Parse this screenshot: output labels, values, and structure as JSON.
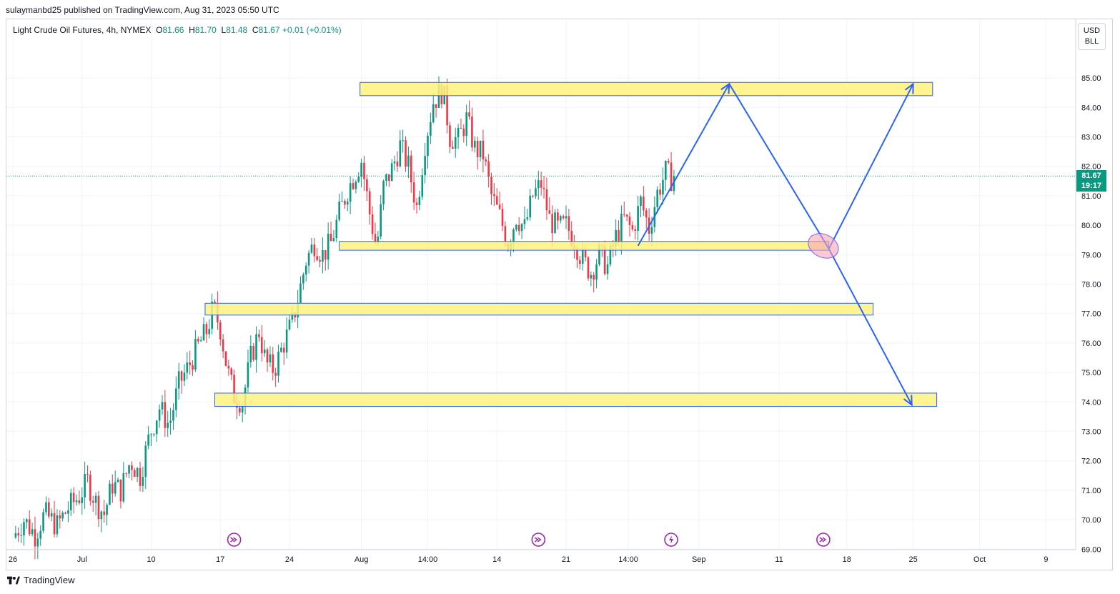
{
  "publisher_line": "sulaymanbd25 published on TradingView.com, Aug 31, 2023 05:50 UTC",
  "legend": {
    "symbol": "Light Crude Oil Futures, 4h, NYMEX",
    "o_label": "O",
    "o_value": "81.66",
    "h_label": "H",
    "h_value": "81.70",
    "l_label": "L",
    "l_value": "81.48",
    "c_label": "C",
    "c_value": "81.67",
    "change": "+0.01 (+0.01%)"
  },
  "currency": {
    "line1": "USD",
    "line2": "BLL"
  },
  "last_price": {
    "price": "81.67",
    "countdown": "19:17"
  },
  "branding": "TradingView",
  "colors": {
    "up": "#089981",
    "down": "#f23645",
    "zone_fill": "#fff27d",
    "zone_border": "#2962ff",
    "arrow": "#2962ff",
    "ellipse": "#f6a5b8"
  },
  "chart_data": {
    "type": "candlestick",
    "symbol": "Light Crude Oil Futures",
    "interval": "4h",
    "exchange": "NYMEX",
    "ylim": [
      69,
      86
    ],
    "y_ticks": [
      "69.00",
      "70.00",
      "71.00",
      "72.00",
      "73.00",
      "74.00",
      "75.00",
      "76.00",
      "77.00",
      "78.00",
      "79.00",
      "80.00",
      "81.00",
      "82.00",
      "83.00",
      "84.00",
      "85.00"
    ],
    "x_ticks": [
      {
        "label": "26",
        "t": 0
      },
      {
        "label": "Jul",
        "t": 5
      },
      {
        "label": "10",
        "t": 10
      },
      {
        "label": "17",
        "t": 15
      },
      {
        "label": "24",
        "t": 20
      },
      {
        "label": "Aug",
        "t": 25.2
      },
      {
        "label": "14:00",
        "t": 30
      },
      {
        "label": "14",
        "t": 35
      },
      {
        "label": "21",
        "t": 40
      },
      {
        "label": "14:00",
        "t": 44.5
      },
      {
        "label": "Sep",
        "t": 49.6
      },
      {
        "label": "11",
        "t": 55.4
      },
      {
        "label": "18",
        "t": 60.3
      },
      {
        "label": "25",
        "t": 65.1
      },
      {
        "label": "Oct",
        "t": 69.9
      },
      {
        "label": "9",
        "t": 74.7
      }
    ],
    "price_path": [
      [
        0.0,
        69.4
      ],
      [
        0.8,
        70.0
      ],
      [
        1.6,
        69.5
      ],
      [
        2.3,
        70.2
      ],
      [
        3.2,
        69.8
      ],
      [
        4.0,
        70.4
      ],
      [
        4.8,
        70.8
      ],
      [
        5.4,
        71.3
      ],
      [
        6.0,
        70.6
      ],
      [
        6.6,
        70.2
      ],
      [
        7.2,
        71.2
      ],
      [
        7.8,
        71.0
      ],
      [
        8.5,
        72.0
      ],
      [
        9.2,
        71.5
      ],
      [
        9.9,
        72.9
      ],
      [
        10.6,
        73.8
      ],
      [
        11.3,
        73.2
      ],
      [
        12.0,
        74.6
      ],
      [
        12.7,
        75.2
      ],
      [
        13.4,
        75.9
      ],
      [
        14.0,
        76.4
      ],
      [
        14.5,
        77.2
      ],
      [
        15.0,
        76.5
      ],
      [
        15.5,
        75.1
      ],
      [
        16.0,
        74.2
      ],
      [
        16.6,
        74.0
      ],
      [
        17.2,
        75.5
      ],
      [
        17.8,
        76.4
      ],
      [
        18.3,
        75.3
      ],
      [
        18.9,
        75.1
      ],
      [
        19.6,
        76.0
      ],
      [
        20.2,
        76.7
      ],
      [
        20.7,
        77.7
      ],
      [
        21.2,
        78.8
      ],
      [
        21.8,
        79.4
      ],
      [
        22.4,
        79.0
      ],
      [
        23.0,
        79.4
      ],
      [
        23.6,
        80.4
      ],
      [
        24.2,
        81.2
      ],
      [
        24.8,
        81.8
      ],
      [
        25.2,
        82.2
      ],
      [
        25.8,
        80.4
      ],
      [
        26.3,
        79.2
      ],
      [
        26.8,
        81.3
      ],
      [
        27.4,
        81.9
      ],
      [
        28.0,
        82.7
      ],
      [
        28.6,
        82.0
      ],
      [
        29.2,
        80.6
      ],
      [
        29.8,
        82.8
      ],
      [
        30.4,
        84.2
      ],
      [
        31.1,
        84.6
      ],
      [
        31.6,
        83.0
      ],
      [
        32.2,
        82.9
      ],
      [
        32.8,
        83.6
      ],
      [
        33.4,
        82.6
      ],
      [
        34.0,
        82.4
      ],
      [
        34.6,
        81.0
      ],
      [
        35.2,
        80.3
      ],
      [
        35.8,
        79.4
      ],
      [
        36.4,
        80.3
      ],
      [
        37.0,
        79.9
      ],
      [
        37.6,
        81.0
      ],
      [
        38.2,
        81.4
      ],
      [
        38.8,
        80.2
      ],
      [
        39.4,
        79.9
      ],
      [
        40.0,
        80.0
      ],
      [
        40.6,
        79.5
      ],
      [
        41.2,
        78.8
      ],
      [
        41.8,
        78.4
      ],
      [
        42.4,
        79.0
      ],
      [
        43.0,
        78.6
      ],
      [
        43.6,
        79.6
      ],
      [
        44.2,
        80.2
      ],
      [
        44.8,
        79.8
      ],
      [
        45.4,
        80.8
      ],
      [
        46.0,
        79.9
      ],
      [
        46.6,
        81.1
      ],
      [
        47.2,
        81.8
      ],
      [
        47.6,
        81.6
      ],
      [
        47.9,
        81.67
      ]
    ],
    "zones": [
      {
        "t0": 25.1,
        "t1": 66.5,
        "lo": 84.4,
        "hi": 84.85
      },
      {
        "t0": 23.6,
        "t1": 59.0,
        "lo": 79.15,
        "hi": 79.45
      },
      {
        "t0": 13.9,
        "t1": 62.2,
        "lo": 76.95,
        "hi": 77.35
      },
      {
        "t0": 14.6,
        "t1": 66.8,
        "lo": 73.85,
        "hi": 74.3
      }
    ],
    "arrows": [
      {
        "from": [
          45.2,
          79.3
        ],
        "to": [
          51.8,
          84.8
        ],
        "head": true
      },
      {
        "from": [
          51.8,
          84.8
        ],
        "to": [
          59.0,
          79.2
        ],
        "head": false
      },
      {
        "from": [
          59.0,
          79.2
        ],
        "to": [
          65.1,
          84.8
        ],
        "head": true
      },
      {
        "from": [
          59.0,
          79.2
        ],
        "to": [
          65.0,
          73.9
        ],
        "head": true
      }
    ],
    "ellipse": {
      "t": 58.6,
      "p": 79.3
    },
    "event_markers": [
      {
        "t": 16.0,
        "kind": "dividends"
      },
      {
        "t": 38.0,
        "kind": "dividends"
      },
      {
        "t": 47.6,
        "kind": "flash"
      },
      {
        "t": 58.6,
        "kind": "dividends"
      }
    ],
    "last_close": 81.67
  }
}
